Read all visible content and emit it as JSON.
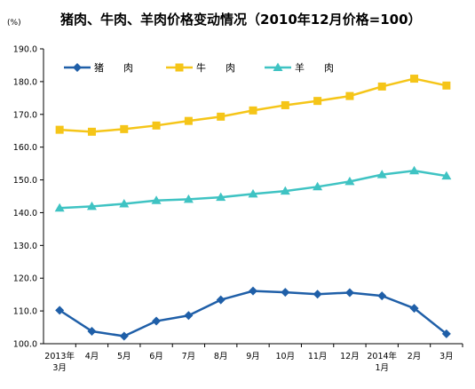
{
  "chart_data": {
    "type": "line",
    "title": "猪肉、牛肉、羊肉价格变动情况（2010年12月价格=100）",
    "unit_label": "(%)",
    "categories": [
      "2013年\n3月",
      "4月",
      "5月",
      "6月",
      "7月",
      "8月",
      "9月",
      "10月",
      "11月",
      "12月",
      "2014年\n1月",
      "2月",
      "3月"
    ],
    "ylim": [
      100,
      190
    ],
    "yticks": [
      "100.0",
      "110.0",
      "120.0",
      "130.0",
      "140.0",
      "150.0",
      "160.0",
      "170.0",
      "180.0",
      "190.0"
    ],
    "grid": false,
    "legend_position": "top-left",
    "series": [
      {
        "name": "猪　　肉",
        "color": "#1f5fa8",
        "marker": "diamond",
        "values": [
          110.2,
          103.8,
          102.3,
          106.9,
          108.6,
          113.4,
          116.1,
          115.7,
          115.1,
          115.6,
          114.6,
          110.8,
          103.0
        ]
      },
      {
        "name": "牛　　肉",
        "color": "#f5c518",
        "marker": "square",
        "values": [
          165.3,
          164.7,
          165.5,
          166.6,
          168.0,
          169.3,
          171.2,
          172.8,
          174.1,
          175.6,
          178.5,
          180.9,
          178.8
        ]
      },
      {
        "name": "羊　　肉",
        "color": "#3fc3c3",
        "marker": "triangle",
        "values": [
          141.4,
          141.9,
          142.7,
          143.7,
          144.1,
          144.7,
          145.7,
          146.6,
          147.9,
          149.5,
          151.6,
          152.8,
          151.2
        ]
      }
    ]
  }
}
